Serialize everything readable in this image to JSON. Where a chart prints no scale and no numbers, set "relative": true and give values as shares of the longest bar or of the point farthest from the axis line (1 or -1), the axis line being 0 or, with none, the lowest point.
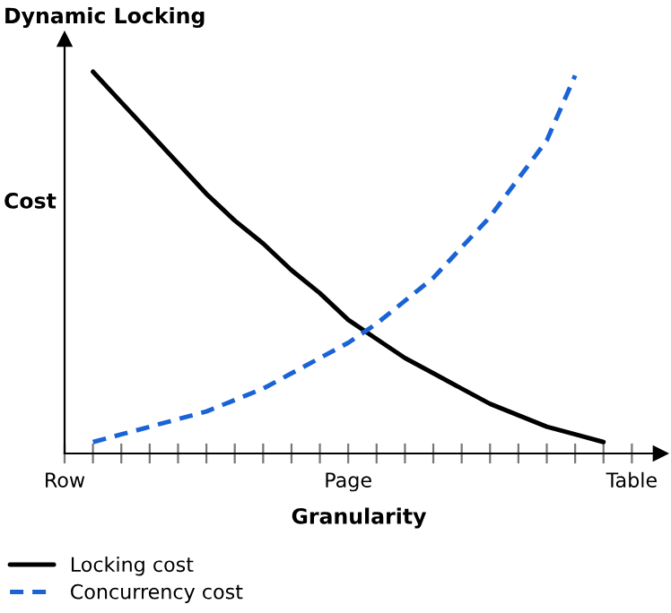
{
  "chart_data": {
    "type": "line",
    "title": "Dynamic Locking",
    "xlabel": "Granularity",
    "ylabel": "Cost",
    "relative": true,
    "legend": "bottom left",
    "grid": false,
    "categories": [
      "Row",
      null,
      null,
      null,
      null,
      null,
      null,
      null,
      null,
      null,
      "Page",
      null,
      null,
      null,
      null,
      null,
      null,
      null,
      null,
      null,
      "Table"
    ],
    "series": [
      {
        "name": "Locking cost",
        "color": "#000000",
        "line_style": "solid",
        "values": [
          null,
          1.0,
          0.92,
          0.84,
          0.76,
          0.68,
          0.61,
          0.55,
          0.48,
          0.42,
          0.35,
          0.3,
          0.25,
          0.21,
          0.17,
          0.13,
          0.1,
          0.07,
          0.05,
          0.03,
          null
        ]
      },
      {
        "name": "Concurrency cost",
        "color": "#1a63d6",
        "line_style": "dashed",
        "values": [
          null,
          0.03,
          0.05,
          0.07,
          0.09,
          0.11,
          0.14,
          0.17,
          0.21,
          0.25,
          0.29,
          0.34,
          0.4,
          0.46,
          0.54,
          0.62,
          0.72,
          0.82,
          0.99,
          null,
          null
        ]
      }
    ]
  }
}
